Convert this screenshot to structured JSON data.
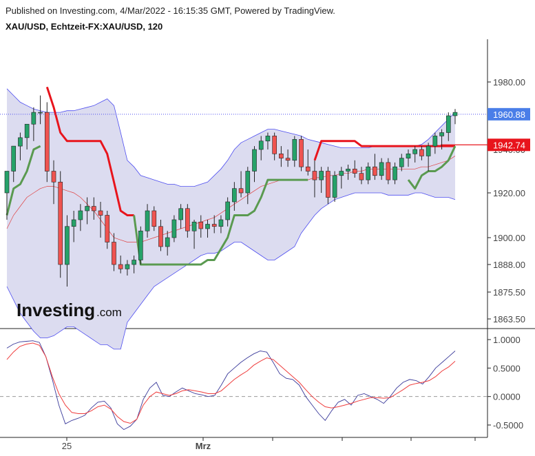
{
  "header": {
    "published": "Published on Investing.com, 4/Mar/2022 - 16:15:35 GMT, Powered by TradingView.",
    "symbol": "XAU/USD, Echtzeit-FX:XAU/USD, 120"
  },
  "logo": {
    "main": "Investing",
    "suffix": ".com"
  },
  "price_labels": {
    "last": "1960.88",
    "last_color": "#4a7ee8",
    "level": "1942.74",
    "level_color": "#e8141c"
  },
  "colors": {
    "up": "#26a269",
    "down": "#ef5350",
    "band_fill": "#dcdcf0",
    "band_line": "#4c4cf0",
    "mid": "#e04040",
    "red_line": "#e8141c",
    "green_line": "#5a9a50",
    "osc_blue": "#3a3a9a",
    "osc_red": "#ef3b3b"
  },
  "chart_data": [
    {
      "type": "candlestick",
      "title": "XAU/USD, Echtzeit-FX:XAU/USD, 120",
      "ylim": [
        1858,
        1992
      ],
      "yticks": [
        "1980.00",
        "1940.00",
        "1920.00",
        "1900.00",
        "1888.00",
        "1875.50",
        "1863.50"
      ],
      "xticks": [
        "25",
        "Mrz"
      ],
      "ohlc": [
        [
          1920,
          1930,
          1908,
          1930
        ],
        [
          1930,
          1942,
          1925,
          1942
        ],
        [
          1942,
          1950,
          1935,
          1947
        ],
        [
          1947,
          1955,
          1940,
          1955
        ],
        [
          1955,
          1965,
          1945,
          1962
        ],
        [
          1962,
          1972,
          1955,
          1962
        ],
        [
          1962,
          1968,
          1925,
          1930
        ],
        [
          1930,
          1935,
          1915,
          1925
        ],
        [
          1925,
          1930,
          1882,
          1888
        ],
        [
          1888,
          1910,
          1878,
          1905
        ],
        [
          1905,
          1912,
          1898,
          1908
        ],
        [
          1908,
          1915,
          1903,
          1912
        ],
        [
          1912,
          1918,
          1906,
          1914
        ],
        [
          1914,
          1918,
          1908,
          1912
        ],
        [
          1912,
          1916,
          1900,
          1910
        ],
        [
          1910,
          1912,
          1895,
          1898
        ],
        [
          1898,
          1902,
          1885,
          1888
        ],
        [
          1888,
          1892,
          1884,
          1886
        ],
        [
          1886,
          1890,
          1883,
          1888
        ],
        [
          1888,
          1892,
          1884,
          1890
        ],
        [
          1890,
          1905,
          1888,
          1903
        ],
        [
          1903,
          1915,
          1900,
          1912
        ],
        [
          1912,
          1914,
          1903,
          1905
        ],
        [
          1905,
          1908,
          1894,
          1896
        ],
        [
          1896,
          1903,
          1892,
          1900
        ],
        [
          1900,
          1910,
          1898,
          1908
        ],
        [
          1908,
          1915,
          1904,
          1913
        ],
        [
          1913,
          1915,
          1900,
          1903
        ],
        [
          1903,
          1908,
          1895,
          1907
        ],
        [
          1907,
          1910,
          1900,
          1904
        ],
        [
          1904,
          1908,
          1900,
          1906
        ],
        [
          1906,
          1910,
          1902,
          1905
        ],
        [
          1905,
          1910,
          1902,
          1908
        ],
        [
          1908,
          1918,
          1905,
          1916
        ],
        [
          1916,
          1925,
          1912,
          1922
        ],
        [
          1922,
          1930,
          1918,
          1920
        ],
        [
          1920,
          1932,
          1915,
          1930
        ],
        [
          1930,
          1942,
          1925,
          1940
        ],
        [
          1940,
          1948,
          1935,
          1945
        ],
        [
          1945,
          1950,
          1940,
          1948
        ],
        [
          1948,
          1950,
          1935,
          1938
        ],
        [
          1938,
          1942,
          1932,
          1936
        ],
        [
          1936,
          1940,
          1932,
          1935
        ],
        [
          1935,
          1948,
          1932,
          1946
        ],
        [
          1946,
          1948,
          1930,
          1932
        ],
        [
          1932,
          1940,
          1928,
          1930
        ],
        [
          1930,
          1935,
          1918,
          1926
        ],
        [
          1926,
          1932,
          1920,
          1930
        ],
        [
          1930,
          1932,
          1915,
          1918
        ],
        [
          1918,
          1930,
          1916,
          1928
        ],
        [
          1928,
          1932,
          1922,
          1930
        ],
        [
          1930,
          1933,
          1926,
          1931
        ],
        [
          1931,
          1935,
          1927,
          1929
        ],
        [
          1929,
          1932,
          1924,
          1926
        ],
        [
          1926,
          1934,
          1924,
          1932
        ],
        [
          1932,
          1938,
          1926,
          1928
        ],
        [
          1928,
          1936,
          1926,
          1934
        ],
        [
          1934,
          1936,
          1924,
          1926
        ],
        [
          1926,
          1934,
          1924,
          1932
        ],
        [
          1932,
          1938,
          1930,
          1936
        ],
        [
          1936,
          1940,
          1932,
          1938
        ],
        [
          1938,
          1942,
          1934,
          1940
        ],
        [
          1940,
          1942,
          1935,
          1937
        ],
        [
          1937,
          1944,
          1930,
          1942
        ],
        [
          1942,
          1950,
          1938,
          1948
        ],
        [
          1948,
          1952,
          1940,
          1950
        ],
        [
          1950,
          1962,
          1945,
          1960
        ],
        [
          1960,
          1964,
          1955,
          1962
        ]
      ],
      "last_price": 1960.88,
      "level": 1942.74,
      "band_upper": [
        1976,
        1972,
        1968,
        1966,
        1964,
        1963,
        1962,
        1962,
        1962,
        1963,
        1963,
        1964,
        1965,
        1966,
        1968,
        1970,
        1966,
        1950,
        1935,
        1932,
        1928,
        1927,
        1926,
        1925,
        1924,
        1924,
        1923,
        1923,
        1923,
        1924,
        1925,
        1928,
        1931,
        1935,
        1940,
        1944,
        1946,
        1948,
        1950,
        1952,
        1952,
        1951,
        1950,
        1949,
        1948,
        1946,
        1945,
        1944,
        1943,
        1942,
        1941,
        1941,
        1941,
        1941,
        1941,
        1942,
        1942,
        1942,
        1942,
        1942,
        1942,
        1942,
        1943,
        1946,
        1950,
        1954,
        1958,
        1962
      ],
      "band_lower": [
        1878,
        1872,
        1866,
        1862,
        1858,
        1855,
        1855,
        1856,
        1858,
        1860,
        1860,
        1858,
        1856,
        1854,
        1852,
        1852,
        1850,
        1850,
        1862,
        1866,
        1870,
        1874,
        1878,
        1880,
        1882,
        1884,
        1886,
        1888,
        1890,
        1892,
        1893,
        1893,
        1894,
        1896,
        1898,
        1898,
        1896,
        1894,
        1892,
        1890,
        1890,
        1892,
        1894,
        1896,
        1902,
        1906,
        1910,
        1913,
        1915,
        1917,
        1918,
        1919,
        1920,
        1920,
        1920,
        1920,
        1920,
        1919,
        1919,
        1919,
        1919,
        1920,
        1920,
        1919,
        1918,
        1918,
        1918,
        1917
      ],
      "band_mid": [
        1904,
        1910,
        1914,
        1918,
        1920,
        1922,
        1923,
        1923,
        1922,
        1921,
        1920,
        1918,
        1915,
        1912,
        1908,
        1904,
        1900,
        1899,
        1898,
        1898,
        1898,
        1899,
        1900,
        1901,
        1902,
        1903,
        1904,
        1905,
        1906,
        1907,
        1908,
        1909,
        1911,
        1913,
        1915,
        1917,
        1919,
        1921,
        1923,
        1924,
        1925,
        1926,
        1926,
        1926,
        1926,
        1926,
        1927,
        1927,
        1928,
        1928,
        1929,
        1929,
        1930,
        1930,
        1931,
        1931,
        1931,
        1931,
        1931,
        1931,
        1931,
        1931,
        1932,
        1932,
        1933,
        1934,
        1935,
        1937
      ],
      "red_stop": [
        null,
        null,
        null,
        null,
        null,
        null,
        1977,
        1965,
        1950,
        1945,
        1945,
        1945,
        1945,
        1945,
        1945,
        1938,
        1925,
        1912,
        1910,
        1910,
        null,
        null,
        null,
        null,
        null,
        null,
        null,
        null,
        null,
        null,
        null,
        null,
        null,
        null,
        null,
        null,
        null,
        null,
        null,
        null,
        null,
        null,
        null,
        null,
        null,
        null,
        1935,
        1945,
        1945,
        1945,
        1945,
        1945,
        1945,
        1942,
        1942,
        1942,
        1942,
        1942,
        1942,
        1942,
        1942,
        1942,
        1942,
        1942,
        1942,
        1942,
        1942,
        1942
      ],
      "green_stop": [
        1910,
        1922,
        1924,
        1930,
        1940,
        1942,
        null,
        null,
        null,
        null,
        null,
        null,
        null,
        null,
        null,
        null,
        null,
        null,
        null,
        1910,
        1888,
        1888,
        1888,
        1888,
        1888,
        1888,
        1888,
        1888,
        1888,
        1888,
        1890,
        1890,
        1895,
        1900,
        1910,
        1910,
        1910,
        1912,
        1918,
        1926,
        1926,
        1926,
        1926,
        1926,
        1926,
        1926,
        null,
        null,
        null,
        null,
        null,
        null,
        null,
        null,
        null,
        null,
        null,
        null,
        null,
        null,
        1926,
        1922,
        1928,
        1930,
        1930,
        1932,
        1935,
        1942
      ]
    },
    {
      "type": "line",
      "ylim": [
        -0.65,
        1.05
      ],
      "yticks": [
        "1.0000",
        "0.5000",
        "0.0000",
        "-0.5000"
      ],
      "series": [
        {
          "values": [
            0.85,
            0.92,
            0.96,
            0.97,
            0.98,
            0.95,
            0.7,
            0.3,
            -0.15,
            -0.48,
            -0.42,
            -0.38,
            -0.33,
            -0.2,
            -0.1,
            -0.08,
            -0.2,
            -0.48,
            -0.58,
            -0.52,
            -0.4,
            -0.05,
            0.15,
            0.25,
            0.02,
            0.0,
            0.08,
            0.15,
            0.1,
            0.05,
            0.03,
            0.0,
            0.02,
            0.2,
            0.4,
            0.5,
            0.6,
            0.68,
            0.75,
            0.8,
            0.78,
            0.6,
            0.4,
            0.32,
            0.3,
            0.2,
            0.0,
            -0.15,
            -0.3,
            -0.42,
            -0.25,
            -0.1,
            -0.05,
            -0.15,
            0.02,
            0.05,
            0.0,
            -0.05,
            -0.12,
            0.0,
            0.15,
            0.25,
            0.3,
            0.28,
            0.22,
            0.35,
            0.5,
            0.6,
            0.7,
            0.8
          ]
        },
        {
          "values": [
            0.65,
            0.78,
            0.88,
            0.92,
            0.94,
            0.9,
            0.7,
            0.35,
            0.05,
            -0.15,
            -0.28,
            -0.3,
            -0.3,
            -0.25,
            -0.18,
            -0.15,
            -0.22,
            -0.35,
            -0.44,
            -0.47,
            -0.4,
            -0.15,
            0.0,
            0.08,
            0.05,
            0.02,
            0.05,
            0.1,
            0.12,
            0.1,
            0.08,
            0.05,
            0.05,
            0.1,
            0.2,
            0.3,
            0.38,
            0.45,
            0.55,
            0.62,
            0.68,
            0.65,
            0.55,
            0.45,
            0.35,
            0.25,
            0.12,
            0.0,
            -0.1,
            -0.18,
            -0.2,
            -0.18,
            -0.15,
            -0.12,
            -0.08,
            -0.05,
            -0.02,
            -0.02,
            -0.03,
            -0.02,
            0.05,
            0.12,
            0.2,
            0.23,
            0.25,
            0.28,
            0.35,
            0.45,
            0.52,
            0.62
          ]
        }
      ]
    }
  ]
}
